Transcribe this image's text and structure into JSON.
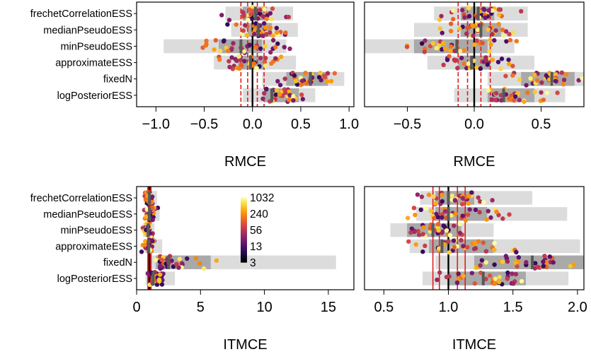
{
  "colorbar": {
    "ticks": [
      "1032",
      "240",
      "56",
      "13",
      "3"
    ],
    "colors": [
      "#000004",
      "#1b0c41",
      "#4a0c6b",
      "#781c6d",
      "#a52c60",
      "#cf4446",
      "#ed6925",
      "#fb9b06",
      "#f7d13d",
      "#fcffa4"
    ]
  },
  "chart_data": [
    {
      "type": "scatter",
      "panel": "top-left",
      "xlabel": "RMCE",
      "xticks": [
        "−1.0",
        "−0.5",
        "0.0",
        "0.5",
        "1.0"
      ],
      "xtick_values": [
        -1.0,
        -0.5,
        0.0,
        0.5,
        1.0
      ],
      "xlim": [
        -1.2,
        1.05
      ],
      "reference_line": 0.0,
      "red_lines": [
        -0.12,
        -0.05,
        0.05,
        0.12
      ],
      "categories": [
        "frechetCorrelationESS",
        "medianPseudoESS",
        "minPseudoESS",
        "approximateESS",
        "fixedN",
        "logPosteriorESS"
      ],
      "boxes": [
        {
          "outer": [
            -0.28,
            0.42
          ],
          "inner": [
            -0.1,
            0.15
          ],
          "median": 0.03
        },
        {
          "outer": [
            -0.22,
            0.47
          ],
          "inner": [
            -0.05,
            0.2
          ],
          "median": 0.06
        },
        {
          "outer": [
            -0.92,
            0.35
          ],
          "inner": [
            -0.35,
            0.1
          ],
          "median": -0.12
        },
        {
          "outer": [
            -0.4,
            0.45
          ],
          "inner": [
            -0.15,
            0.12
          ],
          "median": -0.02
        },
        {
          "outer": [
            0.1,
            0.95
          ],
          "inner": [
            0.35,
            0.78
          ],
          "median": 0.6
        },
        {
          "outer": [
            -0.1,
            0.65
          ],
          "inner": [
            0.12,
            0.48
          ],
          "median": 0.2
        }
      ]
    },
    {
      "type": "scatter",
      "panel": "top-right",
      "xlabel": "RMCE",
      "xticks": [
        "−0.5",
        "0.0",
        "0.5"
      ],
      "xtick_values": [
        -0.5,
        0.0,
        0.5
      ],
      "xlim": [
        -0.82,
        0.82
      ],
      "reference_line": 0.0,
      "red_lines": [
        -0.12,
        -0.05,
        0.05,
        0.12
      ],
      "categories": [
        "frechetCorrelationESS",
        "medianPseudoESS",
        "minPseudoESS",
        "approximateESS",
        "fixedN",
        "logPosteriorESS"
      ],
      "boxes": [
        {
          "outer": [
            -0.3,
            0.4
          ],
          "inner": [
            -0.1,
            0.15
          ],
          "median": 0.03
        },
        {
          "outer": [
            -0.45,
            0.4
          ],
          "inner": [
            -0.1,
            0.2
          ],
          "median": 0.05
        },
        {
          "outer": [
            -0.82,
            0.3
          ],
          "inner": [
            -0.45,
            0.1
          ],
          "median": -0.13
        },
        {
          "outer": [
            -0.35,
            0.45
          ],
          "inner": [
            -0.12,
            0.12
          ],
          "median": -0.02
        },
        {
          "outer": [
            0.1,
            0.82
          ],
          "inner": [
            0.35,
            0.75
          ],
          "median": 0.58
        },
        {
          "outer": [
            -0.15,
            0.68
          ],
          "inner": [
            0.1,
            0.45
          ],
          "median": 0.22
        }
      ]
    },
    {
      "type": "scatter",
      "panel": "bottom-left",
      "xlabel": "ITMCE",
      "xticks": [
        "0",
        "5",
        "10",
        "15"
      ],
      "xtick_values": [
        0,
        5,
        10,
        15
      ],
      "xlim": [
        0,
        17
      ],
      "reference_line": 1.0,
      "red_lines": [
        0.88,
        0.93,
        1.07,
        1.13
      ],
      "categories": [
        "frechetCorrelationESS",
        "medianPseudoESS",
        "minPseudoESS",
        "approximateESS",
        "fixedN",
        "logPosteriorESS"
      ],
      "boxes": [
        {
          "outer": [
            0.6,
            1.6
          ],
          "inner": [
            0.85,
            1.2
          ],
          "median": 1.0
        },
        {
          "outer": [
            0.6,
            1.8
          ],
          "inner": [
            0.85,
            1.3
          ],
          "median": 1.0
        },
        {
          "outer": [
            0.5,
            1.4
          ],
          "inner": [
            0.7,
            1.1
          ],
          "median": 0.9
        },
        {
          "outer": [
            0.6,
            2.0
          ],
          "inner": [
            0.8,
            1.3
          ],
          "median": 0.95
        },
        {
          "outer": [
            0.9,
            15.6
          ],
          "inner": [
            1.5,
            5.8
          ],
          "median": 2.5
        },
        {
          "outer": [
            0.7,
            3.0
          ],
          "inner": [
            1.0,
            2.0
          ],
          "median": 1.3
        }
      ]
    },
    {
      "type": "scatter",
      "panel": "bottom-right",
      "xlabel": "ITMCE",
      "xticks": [
        "0.5",
        "1.0",
        "1.5",
        "2.0"
      ],
      "xtick_values": [
        0.5,
        1.0,
        1.5,
        2.0
      ],
      "xlim": [
        0.35,
        2.05
      ],
      "reference_line": 1.0,
      "red_lines": [
        0.88,
        0.93,
        1.07,
        1.13
      ],
      "categories": [
        "frechetCorrelationESS",
        "medianPseudoESS",
        "minPseudoESS",
        "approximateESS",
        "fixedN",
        "logPosteriorESS"
      ],
      "boxes": [
        {
          "outer": [
            0.78,
            1.65
          ],
          "inner": [
            0.9,
            1.2
          ],
          "median": 1.0
        },
        {
          "outer": [
            0.75,
            1.92
          ],
          "inner": [
            0.9,
            1.3
          ],
          "median": 1.0
        },
        {
          "outer": [
            0.55,
            1.35
          ],
          "inner": [
            0.68,
            1.1
          ],
          "median": 0.88
        },
        {
          "outer": [
            0.7,
            2.02
          ],
          "inner": [
            0.85,
            1.35
          ],
          "median": 0.95
        },
        {
          "outer": [
            0.9,
            2.05
          ],
          "inner": [
            1.2,
            2.05
          ],
          "median": 1.65
        },
        {
          "outer": [
            0.8,
            1.93
          ],
          "inner": [
            1.0,
            1.6
          ],
          "median": 1.27
        }
      ]
    }
  ]
}
